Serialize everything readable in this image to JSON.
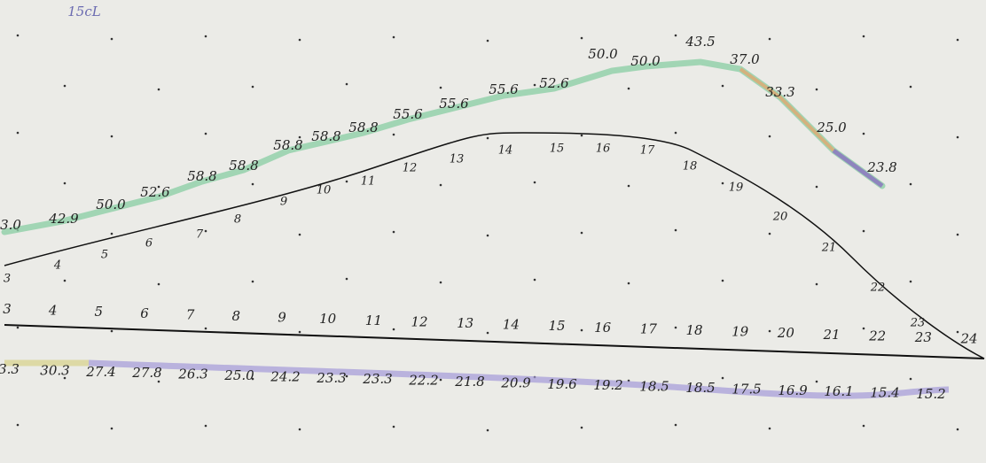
{
  "header": {
    "note": "15cL"
  },
  "upper_labels": [
    "3.0",
    "42.9",
    "50.0",
    "52.6",
    "58.8",
    "58.8",
    "58.8",
    "58.8",
    "58.8",
    "55.6",
    "55.6",
    "55.6",
    "52.6",
    "50.0",
    "50.0",
    "43.5",
    "37.0",
    "33.3",
    "25.0",
    "23.8"
  ],
  "curve_labels": [
    "3",
    "4",
    "5",
    "6",
    "7",
    "8",
    "9",
    "10",
    "11",
    "12",
    "13",
    "14",
    "15",
    "16",
    "17",
    "18",
    "19",
    "20",
    "21",
    "22",
    "23"
  ],
  "axis_labels": [
    "3",
    "4",
    "5",
    "6",
    "7",
    "8",
    "9",
    "10",
    "11",
    "12",
    "13",
    "14",
    "15",
    "16",
    "17",
    "18",
    "19",
    "20",
    "21",
    "22",
    "23",
    "24"
  ],
  "lower_labels": [
    "3.3",
    "30.3",
    "27.4",
    "27.8",
    "26.3",
    "25.0",
    "24.2",
    "23.3",
    "23.3",
    "22.2",
    "21.8",
    "20.9",
    "19.6",
    "19.2",
    "18.5",
    "18.5",
    "17.5",
    "16.9",
    "16.1",
    "15.4",
    "15.2"
  ]
}
